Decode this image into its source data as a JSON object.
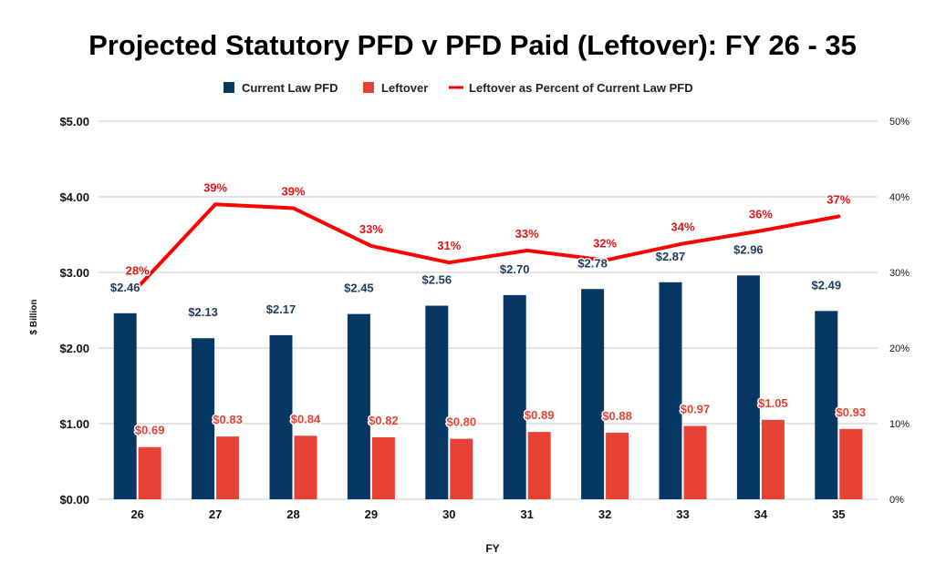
{
  "chart_data": {
    "type": "bar",
    "title": "Projected Statutory PFD v PFD Paid (Leftover): FY 26 - 35",
    "xlabel": "FY",
    "ylabel": "$ Billion",
    "categories": [
      "26",
      "27",
      "28",
      "29",
      "30",
      "31",
      "32",
      "33",
      "34",
      "35"
    ],
    "ylim": [
      0,
      5
    ],
    "y_ticks": [
      "$0.00",
      "$1.00",
      "$2.00",
      "$3.00",
      "$4.00",
      "$5.00"
    ],
    "y2lim": [
      0,
      50
    ],
    "y2_ticks": [
      "0%",
      "10%",
      "20%",
      "30%",
      "40%",
      "50%"
    ],
    "grid": true,
    "legend_position": "top",
    "series": [
      {
        "name": "Current Law PFD",
        "type": "bar",
        "color": "#073763",
        "values": [
          2.46,
          2.13,
          2.17,
          2.45,
          2.56,
          2.7,
          2.78,
          2.87,
          2.96,
          2.49
        ],
        "labels": [
          "$2.46",
          "$2.13",
          "$2.17",
          "$2.45",
          "$2.56",
          "$2.70",
          "$2.78",
          "$2.87",
          "$2.96",
          "$2.49"
        ],
        "label_color": "#1f3a5f"
      },
      {
        "name": "Leftover",
        "type": "bar",
        "color": "#e84236",
        "values": [
          0.69,
          0.83,
          0.84,
          0.82,
          0.8,
          0.89,
          0.88,
          0.97,
          1.05,
          0.93
        ],
        "labels": [
          "$0.69",
          "$0.83",
          "$0.84",
          "$0.82",
          "$0.80",
          "$0.89",
          "$0.88",
          "$0.97",
          "$1.05",
          "$0.93"
        ],
        "label_color": "#e84236"
      },
      {
        "name": "Leftover as Percent of Current Law PFD",
        "type": "line",
        "axis": "right",
        "color": "#ff0000",
        "values": [
          28,
          39,
          38.5,
          33.5,
          31.3,
          32.9,
          31.6,
          33.8,
          35.5,
          37.4
        ],
        "labels": [
          "28%",
          "39%",
          "39%",
          "33%",
          "31%",
          "33%",
          "32%",
          "34%",
          "36%",
          "37%"
        ],
        "label_color": "#e31414"
      }
    ]
  }
}
